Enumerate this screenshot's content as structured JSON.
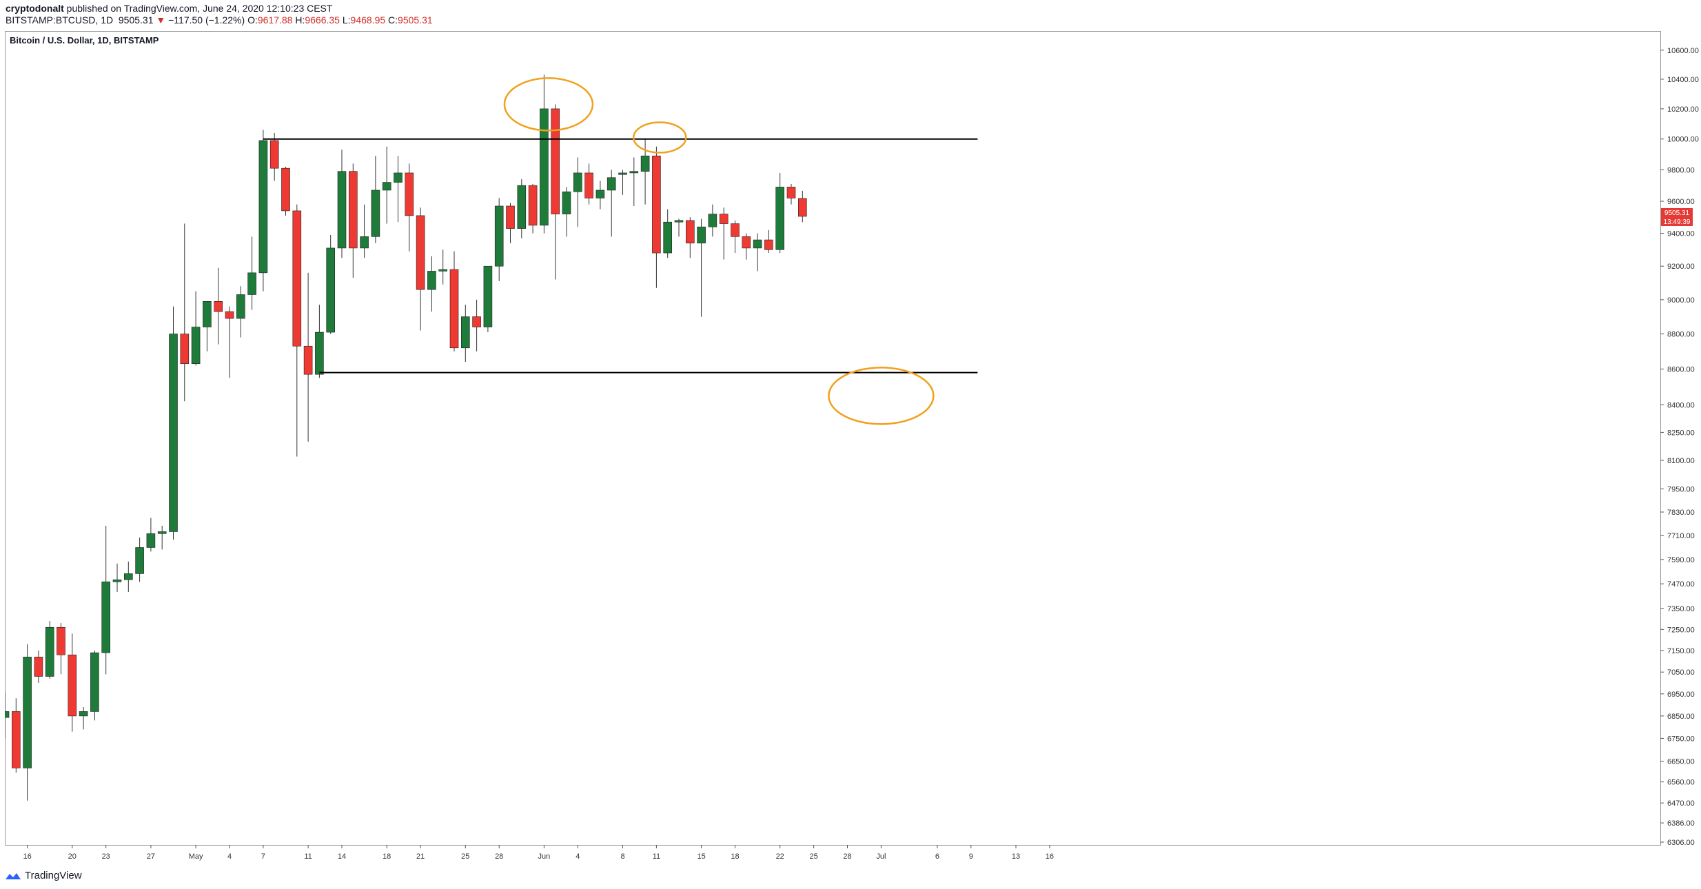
{
  "header": {
    "author": "cryptodonalt",
    "published_text": "published on TradingView.com, June 24, 2020 12:10:23 CEST",
    "symbol": "BITSTAMP:BTCUSD, 1D",
    "last_price": "9505.31",
    "change_arrow": "▼",
    "change": "−117.50 (−1.22%)",
    "o_label": "O:",
    "o_value": "9617.88",
    "h_label": "H:",
    "h_value": "9666.35",
    "l_label": "L:",
    "l_value": "9468.95",
    "c_label": "C:",
    "c_value": "9505.31"
  },
  "footer": {
    "brand": "TradingView"
  },
  "colors": {
    "up": "#1e7b3a",
    "down": "#ee3a33",
    "wick": "#333333",
    "circle": "#f0a11d",
    "price_tag": "#e53935"
  },
  "chart_data": {
    "type": "candlestick",
    "title": "Bitcoin / U.S. Dollar, 1D, BITSTAMP",
    "y_scale": "log",
    "ylim": [
      6306,
      10700
    ],
    "grid": false,
    "y_ticks": [
      "10600.00",
      "10400.00",
      "10200.00",
      "10000.00",
      "9800.00",
      "9600.00",
      "9400.00",
      "9200.00",
      "9000.00",
      "8800.00",
      "8600.00",
      "8400.00",
      "8250.00",
      "8100.00",
      "7950.00",
      "7830.00",
      "7710.00",
      "7590.00",
      "7470.00",
      "7350.00",
      "7250.00",
      "7150.00",
      "7050.00",
      "6950.00",
      "6850.00",
      "6750.00",
      "6650.00",
      "6560.00",
      "6470.00",
      "6386.00",
      "6306.00"
    ],
    "x_ticks": [
      {
        "label": "16",
        "day": 2
      },
      {
        "label": "20",
        "day": 6
      },
      {
        "label": "23",
        "day": 9
      },
      {
        "label": "27",
        "day": 13
      },
      {
        "label": "May",
        "day": 17
      },
      {
        "label": "4",
        "day": 20
      },
      {
        "label": "7",
        "day": 23
      },
      {
        "label": "11",
        "day": 27
      },
      {
        "label": "14",
        "day": 30
      },
      {
        "label": "18",
        "day": 34
      },
      {
        "label": "21",
        "day": 37
      },
      {
        "label": "25",
        "day": 41
      },
      {
        "label": "28",
        "day": 44
      },
      {
        "label": "Jun",
        "day": 48
      },
      {
        "label": "4",
        "day": 51
      },
      {
        "label": "8",
        "day": 55
      },
      {
        "label": "11",
        "day": 58
      },
      {
        "label": "15",
        "day": 62
      },
      {
        "label": "18",
        "day": 65
      },
      {
        "label": "22",
        "day": 69
      },
      {
        "label": "25",
        "day": 72
      },
      {
        "label": "28",
        "day": 75
      },
      {
        "label": "Jul",
        "day": 78
      },
      {
        "label": "6",
        "day": 83
      },
      {
        "label": "9",
        "day": 86
      },
      {
        "label": "13",
        "day": 90
      },
      {
        "label": "16",
        "day": 93
      }
    ],
    "candles": [
      {
        "date": "2020-04-14",
        "o": 6843,
        "h": 6961,
        "l": 6750,
        "c": 6870
      },
      {
        "date": "2020-04-15",
        "o": 6870,
        "h": 6930,
        "l": 6600,
        "c": 6620
      },
      {
        "date": "2020-04-16",
        "o": 6620,
        "h": 7180,
        "l": 6480,
        "c": 7120
      },
      {
        "date": "2020-04-17",
        "o": 7120,
        "h": 7150,
        "l": 7000,
        "c": 7030
      },
      {
        "date": "2020-04-18",
        "o": 7030,
        "h": 7290,
        "l": 7020,
        "c": 7260
      },
      {
        "date": "2020-04-19",
        "o": 7260,
        "h": 7280,
        "l": 7040,
        "c": 7130
      },
      {
        "date": "2020-04-20",
        "o": 7130,
        "h": 7230,
        "l": 6780,
        "c": 6850
      },
      {
        "date": "2020-04-21",
        "o": 6850,
        "h": 6890,
        "l": 6790,
        "c": 6870
      },
      {
        "date": "2020-04-22",
        "o": 6870,
        "h": 7150,
        "l": 6830,
        "c": 7140
      },
      {
        "date": "2020-04-23",
        "o": 7140,
        "h": 7760,
        "l": 7040,
        "c": 7480
      },
      {
        "date": "2020-04-24",
        "o": 7480,
        "h": 7570,
        "l": 7430,
        "c": 7490
      },
      {
        "date": "2020-04-25",
        "o": 7490,
        "h": 7580,
        "l": 7430,
        "c": 7520
      },
      {
        "date": "2020-04-26",
        "o": 7520,
        "h": 7700,
        "l": 7480,
        "c": 7650
      },
      {
        "date": "2020-04-27",
        "o": 7650,
        "h": 7800,
        "l": 7630,
        "c": 7720
      },
      {
        "date": "2020-04-28",
        "o": 7720,
        "h": 7760,
        "l": 7640,
        "c": 7730
      },
      {
        "date": "2020-04-29",
        "o": 7730,
        "h": 8960,
        "l": 7690,
        "c": 8800
      },
      {
        "date": "2020-04-30",
        "o": 8800,
        "h": 9460,
        "l": 8420,
        "c": 8630
      },
      {
        "date": "2020-05-01",
        "o": 8630,
        "h": 9050,
        "l": 8620,
        "c": 8840
      },
      {
        "date": "2020-05-02",
        "o": 8840,
        "h": 8990,
        "l": 8700,
        "c": 8990
      },
      {
        "date": "2020-05-03",
        "o": 8990,
        "h": 9190,
        "l": 8740,
        "c": 8930
      },
      {
        "date": "2020-05-04",
        "o": 8930,
        "h": 8960,
        "l": 8550,
        "c": 8890
      },
      {
        "date": "2020-05-05",
        "o": 8890,
        "h": 9080,
        "l": 8780,
        "c": 9030
      },
      {
        "date": "2020-05-06",
        "o": 9030,
        "h": 9380,
        "l": 8940,
        "c": 9160
      },
      {
        "date": "2020-05-07",
        "o": 9160,
        "h": 10060,
        "l": 9050,
        "c": 9990
      },
      {
        "date": "2020-05-08",
        "o": 9990,
        "h": 10040,
        "l": 9730,
        "c": 9810
      },
      {
        "date": "2020-05-09",
        "o": 9810,
        "h": 9820,
        "l": 9510,
        "c": 9540
      },
      {
        "date": "2020-05-10",
        "o": 9540,
        "h": 9580,
        "l": 8120,
        "c": 8730
      },
      {
        "date": "2020-05-11",
        "o": 8730,
        "h": 9160,
        "l": 8200,
        "c": 8570
      },
      {
        "date": "2020-05-12",
        "o": 8570,
        "h": 8970,
        "l": 8550,
        "c": 8810
      },
      {
        "date": "2020-05-13",
        "o": 8810,
        "h": 9390,
        "l": 8800,
        "c": 9310
      },
      {
        "date": "2020-05-14",
        "o": 9310,
        "h": 9930,
        "l": 9250,
        "c": 9790
      },
      {
        "date": "2020-05-15",
        "o": 9790,
        "h": 9840,
        "l": 9130,
        "c": 9310
      },
      {
        "date": "2020-05-16",
        "o": 9310,
        "h": 9580,
        "l": 9250,
        "c": 9380
      },
      {
        "date": "2020-05-17",
        "o": 9380,
        "h": 9890,
        "l": 9340,
        "c": 9670
      },
      {
        "date": "2020-05-18",
        "o": 9670,
        "h": 9950,
        "l": 9460,
        "c": 9720
      },
      {
        "date": "2020-05-19",
        "o": 9720,
        "h": 9890,
        "l": 9470,
        "c": 9780
      },
      {
        "date": "2020-05-20",
        "o": 9780,
        "h": 9840,
        "l": 9290,
        "c": 9510
      },
      {
        "date": "2020-05-21",
        "o": 9510,
        "h": 9560,
        "l": 8820,
        "c": 9060
      },
      {
        "date": "2020-05-22",
        "o": 9060,
        "h": 9260,
        "l": 8930,
        "c": 9170
      },
      {
        "date": "2020-05-23",
        "o": 9170,
        "h": 9300,
        "l": 9090,
        "c": 9180
      },
      {
        "date": "2020-05-24",
        "o": 9180,
        "h": 9290,
        "l": 8700,
        "c": 8720
      },
      {
        "date": "2020-05-25",
        "o": 8720,
        "h": 8970,
        "l": 8640,
        "c": 8900
      },
      {
        "date": "2020-05-26",
        "o": 8900,
        "h": 9000,
        "l": 8700,
        "c": 8840
      },
      {
        "date": "2020-05-27",
        "o": 8840,
        "h": 9200,
        "l": 8810,
        "c": 9200
      },
      {
        "date": "2020-05-28",
        "o": 9200,
        "h": 9620,
        "l": 9110,
        "c": 9570
      },
      {
        "date": "2020-05-29",
        "o": 9570,
        "h": 9590,
        "l": 9340,
        "c": 9430
      },
      {
        "date": "2020-05-30",
        "o": 9430,
        "h": 9740,
        "l": 9370,
        "c": 9700
      },
      {
        "date": "2020-05-31",
        "o": 9700,
        "h": 9710,
        "l": 9400,
        "c": 9450
      },
      {
        "date": "2020-06-01",
        "o": 9450,
        "h": 10430,
        "l": 9400,
        "c": 10200
      },
      {
        "date": "2020-06-02",
        "o": 10200,
        "h": 10230,
        "l": 9120,
        "c": 9520
      },
      {
        "date": "2020-06-03",
        "o": 9520,
        "h": 9690,
        "l": 9380,
        "c": 9660
      },
      {
        "date": "2020-06-04",
        "o": 9660,
        "h": 9880,
        "l": 9440,
        "c": 9780
      },
      {
        "date": "2020-06-05",
        "o": 9780,
        "h": 9840,
        "l": 9580,
        "c": 9620
      },
      {
        "date": "2020-06-06",
        "o": 9620,
        "h": 9730,
        "l": 9550,
        "c": 9670
      },
      {
        "date": "2020-06-07",
        "o": 9670,
        "h": 9800,
        "l": 9380,
        "c": 9750
      },
      {
        "date": "2020-06-08",
        "o": 9770,
        "h": 9800,
        "l": 9640,
        "c": 9780
      },
      {
        "date": "2020-06-09",
        "o": 9780,
        "h": 9880,
        "l": 9570,
        "c": 9790
      },
      {
        "date": "2020-06-10",
        "o": 9790,
        "h": 10000,
        "l": 9580,
        "c": 9890
      },
      {
        "date": "2020-06-11",
        "o": 9890,
        "h": 9950,
        "l": 9070,
        "c": 9280
      },
      {
        "date": "2020-06-12",
        "o": 9280,
        "h": 9550,
        "l": 9250,
        "c": 9470
      },
      {
        "date": "2020-06-13",
        "o": 9470,
        "h": 9490,
        "l": 9380,
        "c": 9480
      },
      {
        "date": "2020-06-14",
        "o": 9480,
        "h": 9500,
        "l": 9250,
        "c": 9340
      },
      {
        "date": "2020-06-15",
        "o": 9340,
        "h": 9490,
        "l": 8900,
        "c": 9440
      },
      {
        "date": "2020-06-16",
        "o": 9440,
        "h": 9580,
        "l": 9380,
        "c": 9520
      },
      {
        "date": "2020-06-17",
        "o": 9520,
        "h": 9560,
        "l": 9240,
        "c": 9460
      },
      {
        "date": "2020-06-18",
        "o": 9460,
        "h": 9480,
        "l": 9280,
        "c": 9380
      },
      {
        "date": "2020-06-19",
        "o": 9380,
        "h": 9400,
        "l": 9240,
        "c": 9310
      },
      {
        "date": "2020-06-20",
        "o": 9310,
        "h": 9400,
        "l": 9170,
        "c": 9360
      },
      {
        "date": "2020-06-21",
        "o": 9360,
        "h": 9420,
        "l": 9280,
        "c": 9300
      },
      {
        "date": "2020-06-22",
        "o": 9300,
        "h": 9780,
        "l": 9280,
        "c": 9690
      },
      {
        "date": "2020-06-23",
        "o": 9690,
        "h": 9710,
        "l": 9580,
        "c": 9620
      },
      {
        "date": "2020-06-24",
        "o": 9617.88,
        "h": 9666.35,
        "l": 9468.95,
        "c": 9505.31
      }
    ],
    "lines": [
      {
        "name": "resistance",
        "y": 10000,
        "from_day": 23,
        "to_day": 78
      },
      {
        "name": "support",
        "y": 8580,
        "from_day": 28,
        "to_day": 78
      }
    ],
    "circles": [
      {
        "day": 48.4,
        "y": 10230
      },
      {
        "day": 58.3,
        "y": 10010
      },
      {
        "day": 78.0,
        "y": 8450
      }
    ],
    "price_label": "9505.31",
    "countdown_label": "13:49:39"
  }
}
